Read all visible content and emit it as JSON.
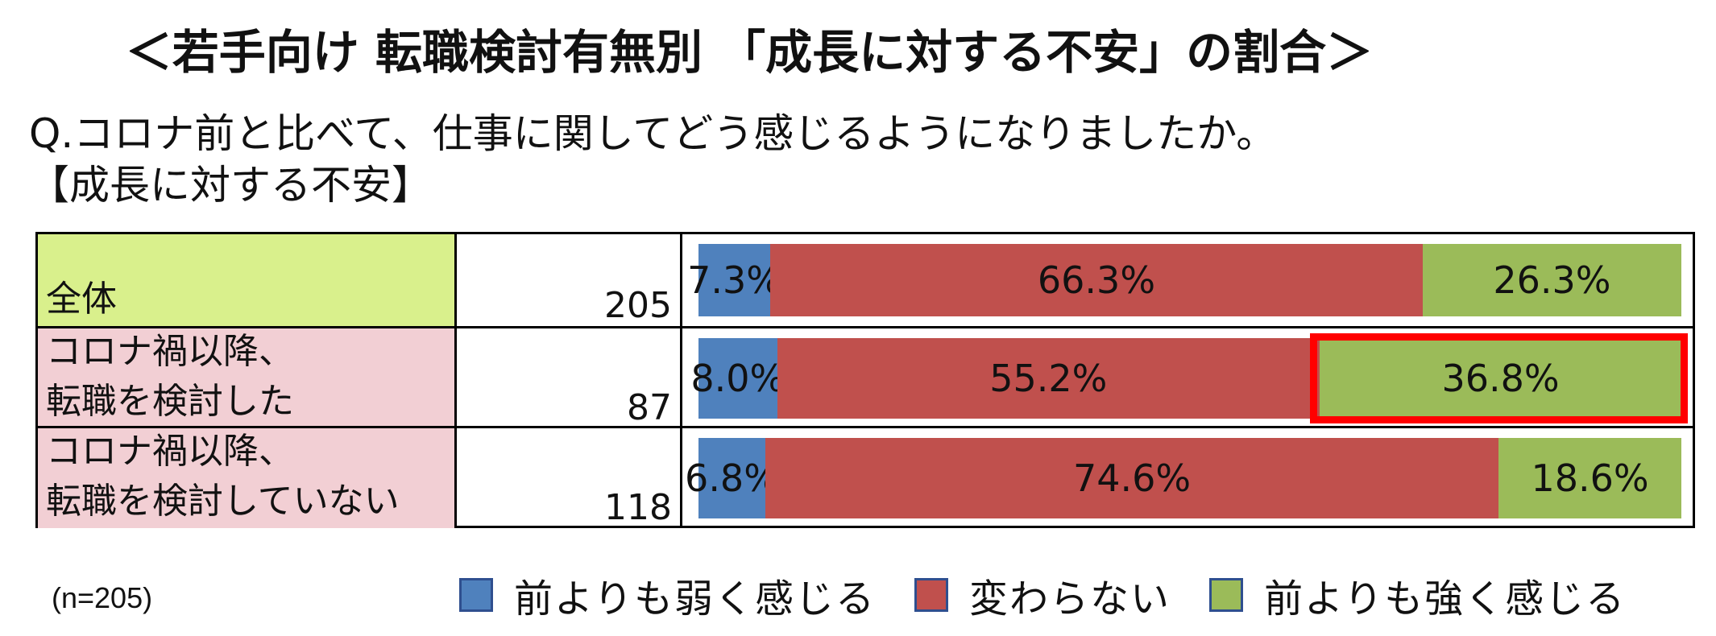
{
  "title": "＜若手向け 転職検討有無別 「成長に対する不安」の割合＞",
  "question": "Q.コロナ前と比べて、仕事に関してどう感じるようになりましたか。",
  "subtitle": "【成長に対する不安】",
  "n_note": "(n=205)",
  "colors": {
    "weaker": "#4f81bd",
    "unchanged": "#c0504d",
    "stronger": "#9bbb59",
    "highlight": "#ff0000",
    "label_all_bg": "#d9f08c",
    "label_group_bg": "#f2cfd4"
  },
  "chart_data": {
    "type": "bar",
    "orientation": "horizontal",
    "stacked": "100%",
    "title": "＜若手向け 転職検討有無別 「成長に対する不安」の割合＞",
    "categories": [
      "全体",
      "コロナ禍以降、\n転職を検討した",
      "コロナ禍以降、\n転職を検討していない"
    ],
    "n": [
      "205",
      "87",
      "118"
    ],
    "series": [
      {
        "name": "前よりも弱く感じる",
        "values": [
          7.3,
          8.0,
          6.8
        ],
        "labels": [
          "7.3%",
          "8.0%",
          "6.8%"
        ]
      },
      {
        "name": "変わらない",
        "values": [
          66.3,
          55.2,
          74.6
        ],
        "labels": [
          "66.3%",
          "55.2%",
          "74.6%"
        ]
      },
      {
        "name": "前よりも強く感じる",
        "values": [
          26.3,
          36.8,
          18.6
        ],
        "labels": [
          "26.3%",
          "36.8%",
          "18.6%"
        ]
      }
    ],
    "highlighted": {
      "category_index": 1,
      "series_index": 2
    },
    "legend_position": "bottom",
    "xlim": [
      0,
      100
    ]
  }
}
